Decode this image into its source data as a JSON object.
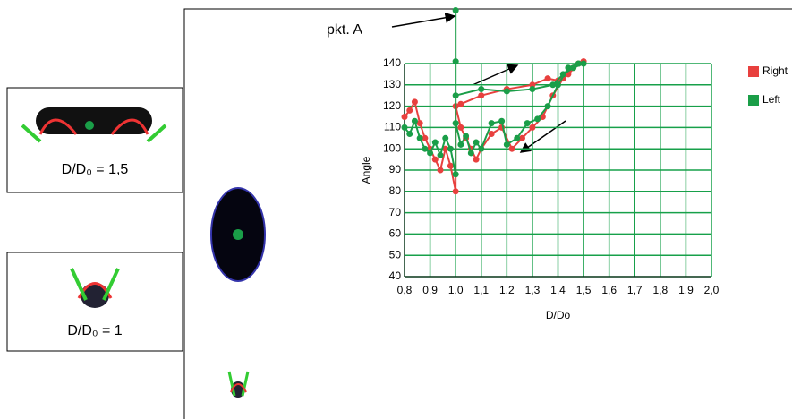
{
  "panels": [
    {
      "caption": "D/D₀ = 1,5"
    },
    {
      "caption": "D/D₀ = 1"
    }
  ],
  "chart_data": {
    "type": "line",
    "x_label": "D/Do",
    "y_label": "Angle",
    "annotation": "pkt. A",
    "xlim": [
      0.8,
      2.0
    ],
    "ylim": [
      40,
      140
    ],
    "xticks": [
      {
        "value": 0.8,
        "label": "0,8"
      },
      {
        "value": 0.9,
        "label": "0,9"
      },
      {
        "value": 1.0,
        "label": "1,0"
      },
      {
        "value": 1.1,
        "label": "1,1"
      },
      {
        "value": 1.2,
        "label": "1,2"
      },
      {
        "value": 1.3,
        "label": "1,3"
      },
      {
        "value": 1.4,
        "label": "1,4"
      },
      {
        "value": 1.5,
        "label": "1,5"
      },
      {
        "value": 1.6,
        "label": "1,6"
      },
      {
        "value": 1.7,
        "label": "1,7"
      },
      {
        "value": 1.8,
        "label": "1,8"
      },
      {
        "value": 1.9,
        "label": "1,9"
      },
      {
        "value": 2.0,
        "label": "2,0"
      }
    ],
    "yticks": [
      40,
      50,
      60,
      70,
      80,
      90,
      100,
      110,
      120,
      130,
      140
    ],
    "grid": true,
    "grid_color": "#17a04a",
    "legend": "right",
    "series": [
      {
        "name": "Right",
        "color": "#e8403e",
        "x": [
          0.8,
          0.82,
          0.84,
          0.86,
          0.88,
          0.9,
          0.92,
          0.94,
          0.96,
          0.98,
          1.0,
          1.0,
          1.02,
          1.04,
          1.06,
          1.08,
          1.1,
          1.14,
          1.18,
          1.22,
          1.26,
          1.3,
          1.34,
          1.38,
          1.42,
          1.46,
          1.5,
          1.48,
          1.44,
          1.4,
          1.36,
          1.3,
          1.2,
          1.1,
          1.02
        ],
        "values": [
          115,
          118,
          122,
          112,
          105,
          100,
          95,
          90,
          100,
          92,
          80,
          120,
          110,
          105,
          100,
          95,
          100,
          107,
          110,
          100,
          105,
          110,
          115,
          125,
          133,
          138,
          141,
          140,
          135,
          132,
          133,
          130,
          128,
          125,
          121
        ]
      },
      {
        "name": "Left",
        "color": "#1a9e48",
        "x": [
          0.8,
          0.82,
          0.84,
          0.86,
          0.88,
          0.9,
          0.92,
          0.94,
          0.96,
          0.98,
          1.0,
          1.0,
          1.0,
          1.0,
          1.02,
          1.04,
          1.06,
          1.08,
          1.1,
          1.14,
          1.18,
          1.2,
          1.24,
          1.28,
          1.32,
          1.36,
          1.4,
          1.44,
          1.48,
          1.5,
          1.46,
          1.42,
          1.38,
          1.3,
          1.2,
          1.1,
          1.0
        ],
        "values": [
          110,
          107,
          113,
          105,
          100,
          98,
          103,
          97,
          105,
          100,
          88,
          141,
          165,
          112,
          102,
          106,
          98,
          103,
          100,
          112,
          113,
          102,
          105,
          112,
          114,
          120,
          130,
          138,
          140,
          140,
          138,
          135,
          130,
          128,
          127,
          128,
          125
        ]
      }
    ]
  }
}
